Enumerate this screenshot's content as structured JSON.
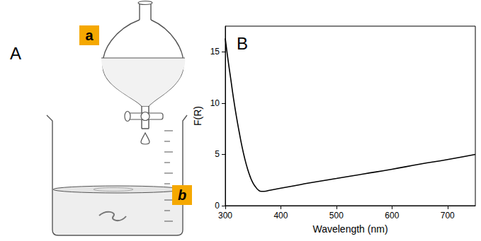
{
  "panel_a": {
    "letter": "A",
    "funnel_label": "a",
    "beaker_label": "b"
  },
  "panel_b_letter": "B",
  "chart_data": {
    "type": "line",
    "x_label": "Wavelength (nm)",
    "y_label": "F(R)",
    "x": [
      300,
      305,
      310,
      315,
      320,
      325,
      330,
      335,
      340,
      345,
      350,
      355,
      360,
      365,
      370,
      380,
      390,
      400,
      425,
      450,
      500,
      550,
      600,
      650,
      700,
      750
    ],
    "values": [
      16.3,
      14.2,
      12.3,
      10.4,
      8.7,
      7.2,
      5.8,
      4.6,
      3.6,
      2.8,
      2.2,
      1.8,
      1.5,
      1.4,
      1.4,
      1.5,
      1.6,
      1.7,
      1.95,
      2.2,
      2.65,
      3.1,
      3.55,
      4.05,
      4.5,
      5.0
    ],
    "color": "#000000",
    "xlim": [
      300,
      750
    ],
    "xticks": [
      300,
      400,
      500,
      600,
      700
    ],
    "ylim": [
      0,
      17.5
    ],
    "yticks": [
      0,
      5,
      10,
      15
    ],
    "grid": false
  }
}
